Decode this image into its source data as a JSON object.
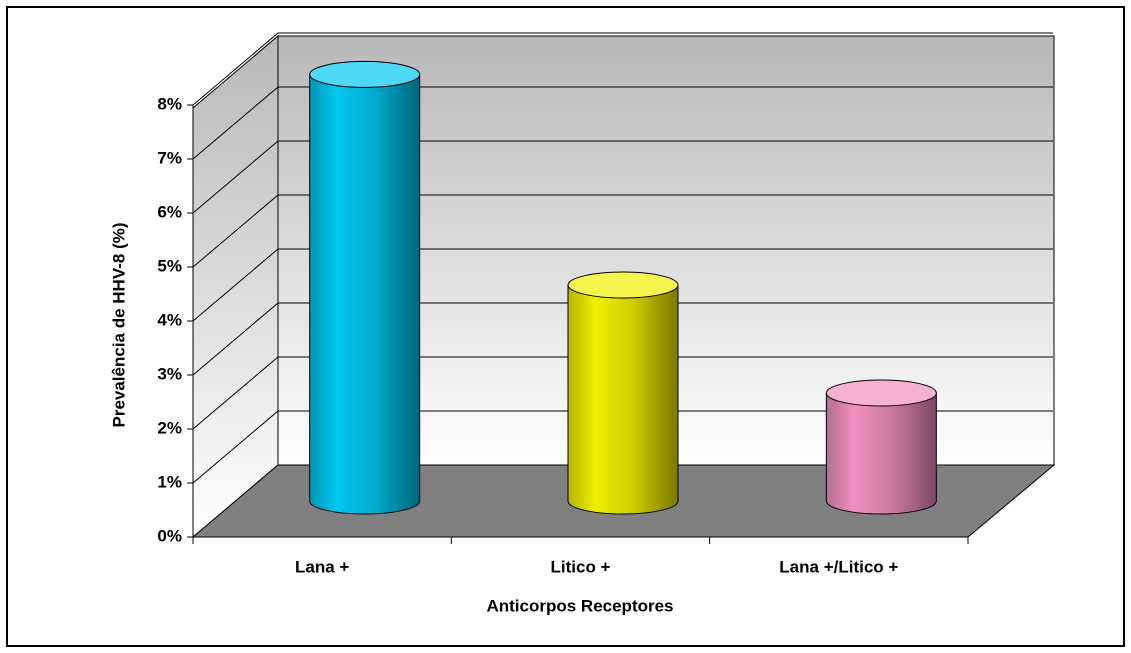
{
  "chart_data": {
    "type": "bar3d",
    "categories": [
      "Lana +",
      "Litico +",
      "Lana +/Litico +"
    ],
    "values": [
      7.9,
      4.0,
      2.0
    ],
    "colors": [
      "#00c8f0",
      "#f0f000",
      "#f090c0"
    ],
    "xlabel": "Anticorpos Receptores",
    "ylabel": "Prevalência de HHV-8 (%)",
    "ylim": [
      0,
      8
    ],
    "yticks": [
      {
        "value": 0,
        "label": "0%"
      },
      {
        "value": 1,
        "label": "1%"
      },
      {
        "value": 2,
        "label": "2%"
      },
      {
        "value": 3,
        "label": "3%"
      },
      {
        "value": 4,
        "label": "4%"
      },
      {
        "value": 5,
        "label": "5%"
      },
      {
        "value": 6,
        "label": "6%"
      },
      {
        "value": 7,
        "label": "7%"
      },
      {
        "value": 8,
        "label": "8%"
      }
    ],
    "grid": true
  }
}
